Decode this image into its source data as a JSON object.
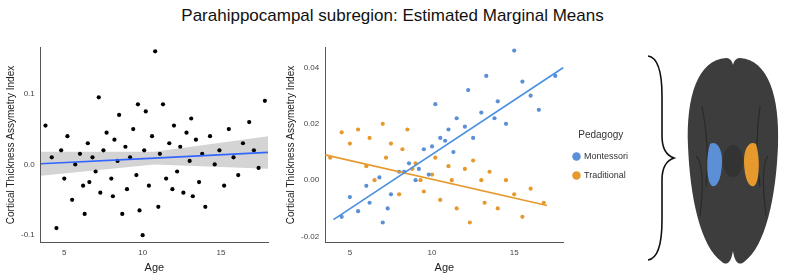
{
  "title": "Parahippocampal subregion: Estimated Marginal Means",
  "chart_data": [
    {
      "type": "scatter",
      "x_label": "Age",
      "y_label": "Cortical Thickness Assymetry Index",
      "xlim": [
        3.5,
        18
      ],
      "ylim": [
        -0.11,
        0.165
      ],
      "xticks": [
        5,
        10,
        15
      ],
      "yticks": [
        -0.1,
        {
          "value": 0,
          "label": "0.0"
        },
        0.1
      ],
      "grid": false,
      "series": [
        {
          "type": "scatter",
          "color": "#000000",
          "marker": "circle",
          "x": [
            3.8,
            4.2,
            4.5,
            4.8,
            5.0,
            5.2,
            5.5,
            5.7,
            6.0,
            6.2,
            6.3,
            6.5,
            6.8,
            7.0,
            7.2,
            7.3,
            7.5,
            7.7,
            8.0,
            8.2,
            8.4,
            8.5,
            8.7,
            8.9,
            9.0,
            9.2,
            9.4,
            9.6,
            9.7,
            9.8,
            10.0,
            10.1,
            10.2,
            10.4,
            10.6,
            10.8,
            11.0,
            11.1,
            11.3,
            11.5,
            11.7,
            12.0,
            12.2,
            12.4,
            12.6,
            12.8,
            13.0,
            13.2,
            13.4,
            13.6,
            13.8,
            14.0,
            14.3,
            14.6,
            14.9,
            15.2,
            15.5,
            15.8,
            16.1,
            16.4,
            16.8,
            17.1,
            17.4,
            17.8,
            8.1,
            6.6,
            11.9,
            13.1
          ],
          "values": [
            0.055,
            0.01,
            -0.09,
            0.02,
            -0.02,
            0.04,
            -0.05,
            0.0,
            0.015,
            -0.03,
            -0.07,
            0.03,
            0.01,
            -0.01,
            0.095,
            -0.04,
            0.02,
            0.045,
            -0.02,
            0.035,
            0.005,
            0.07,
            -0.07,
            0.025,
            -0.035,
            0.01,
            0.05,
            -0.015,
            0.085,
            -0.065,
            -0.1,
            0.02,
            0.075,
            -0.03,
            0.04,
            0.16,
            -0.06,
            0.015,
            0.085,
            -0.02,
            0.03,
            0.055,
            -0.01,
            0.025,
            -0.04,
            0.045,
            0.005,
            -0.045,
            0.035,
            -0.025,
            0.015,
            -0.06,
            0.04,
            0.0,
            0.02,
            -0.03,
            0.05,
            0.01,
            -0.015,
            0.03,
            0.06,
            0.02,
            -0.005,
            0.09,
            -0.045,
            -0.025,
            -0.035,
            0.065
          ]
        },
        {
          "type": "line",
          "color": "#3366ff",
          "x": [
            3.5,
            10.75,
            18
          ],
          "values": [
            0.001,
            0.009,
            0.017
          ],
          "band_lower": [
            -0.016,
            0.0,
            -0.006
          ],
          "band_upper": [
            0.018,
            0.018,
            0.04
          ]
        }
      ]
    },
    {
      "type": "scatter",
      "x_label": "Age",
      "y_label": "Cortical Thickness Assymetry Index",
      "xlim": [
        3.5,
        18
      ],
      "ylim": [
        -0.022,
        0.047
      ],
      "xticks": [
        5,
        10,
        15
      ],
      "yticks": [
        -0.02,
        {
          "value": 0,
          "label": "0.00"
        },
        {
          "value": 0.02,
          "label": "0.02"
        },
        {
          "value": 0.04,
          "label": "0.04"
        }
      ],
      "grid": false,
      "legend": "right",
      "legend_title": "Pedagogy",
      "series": [
        {
          "name": "Montessori",
          "type": "scatter",
          "color": "#5b8fd6",
          "marker": "circle",
          "x": [
            4.5,
            5.0,
            5.5,
            6.0,
            6.2,
            6.8,
            7.0,
            7.3,
            7.5,
            8.0,
            8.3,
            8.6,
            9.0,
            9.2,
            9.5,
            9.8,
            10.0,
            10.2,
            10.5,
            10.8,
            11.0,
            11.3,
            11.5,
            12.0,
            12.2,
            12.5,
            13.0,
            13.3,
            13.8,
            14.0,
            14.5,
            15.0,
            15.5,
            16.0,
            16.5,
            17.5
          ],
          "values": [
            -0.013,
            -0.006,
            -0.011,
            -0.002,
            -0.008,
            0.001,
            -0.015,
            -0.01,
            -0.005,
            0.003,
            0.003,
            0.006,
            0.0,
            0.004,
            0.011,
            0.002,
            0.012,
            0.027,
            0.015,
            0.014,
            0.018,
            0.01,
            0.022,
            0.019,
            0.032,
            0.015,
            0.024,
            0.037,
            0.022,
            0.028,
            0.02,
            0.046,
            0.035,
            0.03,
            0.025,
            0.037
          ]
        },
        {
          "name": "Traditional",
          "type": "scatter",
          "color": "#e69a2e",
          "marker": "circle",
          "x": [
            3.8,
            4.5,
            5.0,
            5.5,
            6.0,
            6.2,
            6.5,
            7.0,
            7.2,
            7.5,
            8.0,
            8.2,
            8.5,
            8.8,
            9.0,
            9.3,
            9.5,
            10.0,
            10.2,
            10.5,
            11.0,
            11.2,
            11.5,
            12.0,
            12.3,
            12.5,
            13.0,
            13.2,
            13.5,
            14.0,
            14.5,
            15.0,
            15.5,
            16.0,
            16.8
          ],
          "values": [
            0.008,
            0.017,
            0.013,
            0.018,
            0.005,
            0.015,
            0.0,
            0.02,
            0.008,
            0.013,
            -0.005,
            0.011,
            0.018,
            0.004,
            0.006,
            0.0,
            -0.004,
            0.002,
            0.008,
            -0.007,
            0.005,
            0.0,
            -0.01,
            0.004,
            -0.015,
            0.007,
            0.0,
            -0.008,
            0.003,
            -0.01,
            0.0,
            -0.005,
            -0.013,
            -0.003,
            -0.008
          ]
        },
        {
          "type": "line",
          "color": "#4a8fe0",
          "x": [
            4.0,
            18.0
          ],
          "values": [
            -0.014,
            0.04
          ]
        },
        {
          "type": "line",
          "color": "#e69a2e",
          "x": [
            3.5,
            17.0
          ],
          "values": [
            0.009,
            -0.009
          ]
        }
      ]
    }
  ]
}
